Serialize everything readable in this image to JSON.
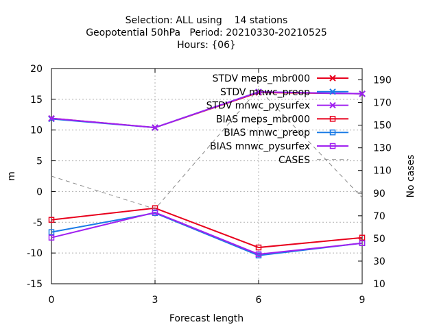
{
  "chart_data": {
    "type": "line",
    "title_lines": [
      "Selection: ALL using    14 stations",
      "Geopotential 50hPa   Period: 20210330-20210525",
      "Hours: {06}"
    ],
    "xlabel": "Forecast length",
    "ylabel": "m",
    "y2label": "No cases",
    "x": [
      0,
      3,
      6,
      9
    ],
    "xlim": [
      0,
      9
    ],
    "ylim": [
      -15,
      20
    ],
    "y2lim": [
      10,
      200
    ],
    "x_ticks": [
      0,
      3,
      6,
      9
    ],
    "y_ticks": [
      -15,
      -10,
      -5,
      0,
      5,
      10,
      15,
      20
    ],
    "y2_ticks": [
      10,
      30,
      50,
      70,
      90,
      110,
      130,
      150,
      170,
      190
    ],
    "grid": true,
    "legend_position": "top-right",
    "series": [
      {
        "name": "STDV meps_mbr000",
        "axis": "y",
        "color": "#e8001c",
        "marker": "x",
        "values": [
          11.9,
          10.4,
          16.1,
          15.9
        ]
      },
      {
        "name": "STDV mnwc_preop",
        "axis": "y",
        "color": "#1a7be6",
        "marker": "x",
        "values": [
          11.8,
          10.4,
          16.2,
          15.9
        ]
      },
      {
        "name": "STDV mnwc_pysurfex",
        "axis": "y",
        "color": "#a020f0",
        "marker": "x",
        "values": [
          11.9,
          10.4,
          16.2,
          15.9
        ]
      },
      {
        "name": "BIAS meps_mbr000",
        "axis": "y",
        "color": "#e8001c",
        "marker": "square",
        "values": [
          -4.6,
          -2.7,
          -9.1,
          -7.5
        ]
      },
      {
        "name": "BIAS mnwc_preop",
        "axis": "y",
        "color": "#1a7be6",
        "marker": "square",
        "values": [
          -6.6,
          -3.5,
          -10.4,
          -8.4
        ]
      },
      {
        "name": "BIAS mnwc_pysurfex",
        "axis": "y",
        "color": "#a020f0",
        "marker": "square",
        "values": [
          -7.5,
          -3.4,
          -10.2,
          -8.4
        ]
      },
      {
        "name": "CASES",
        "axis": "y2",
        "color": "#888888",
        "marker": "none",
        "dashed": true,
        "values": [
          105,
          76,
          182,
          86
        ]
      }
    ]
  }
}
